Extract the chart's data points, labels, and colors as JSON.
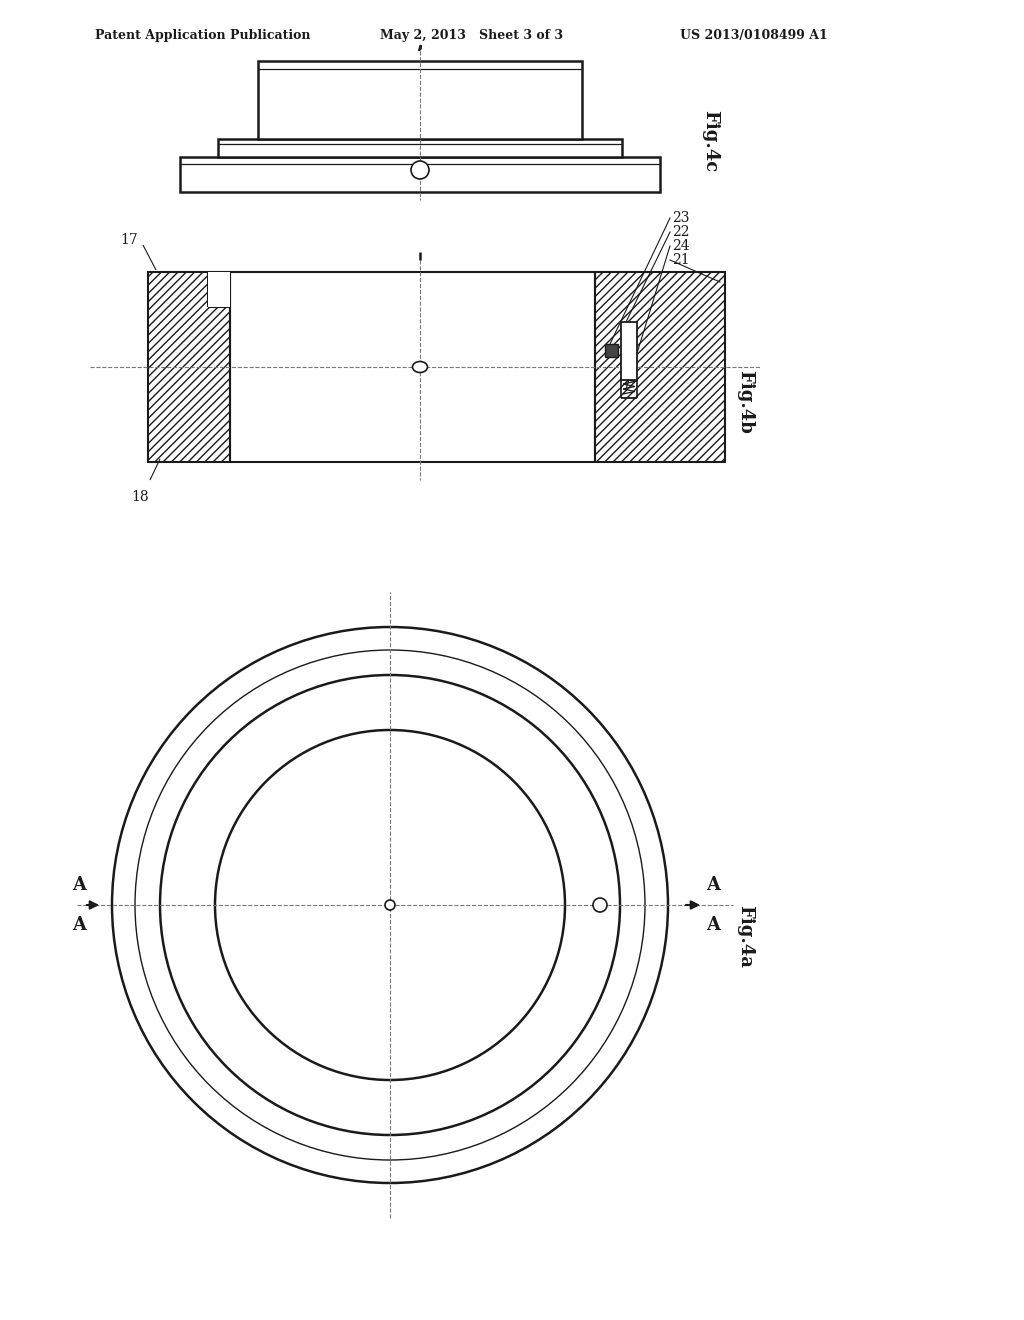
{
  "bg_color": "#ffffff",
  "line_color": "#1a1a1a",
  "header_left": "Patent Application Publication",
  "header_mid": "May 2, 2013   Sheet 3 of 3",
  "header_right": "US 2013/0108499 A1",
  "fig4c_label": "Fig.4c",
  "fig4b_label": "Fig.4b",
  "fig4a_label": "Fig.4a",
  "label_17": "17",
  "label_18": "18",
  "label_21": "21",
  "label_22": "22",
  "label_23": "23",
  "label_24": "24",
  "label_A": "A"
}
